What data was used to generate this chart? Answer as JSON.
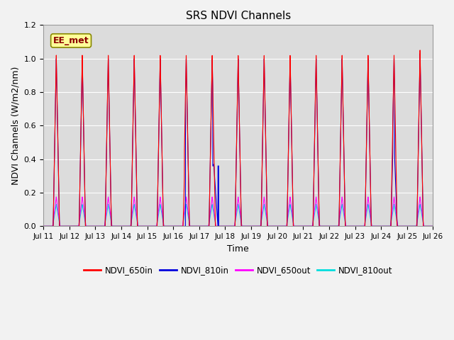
{
  "title": "SRS NDVI Channels",
  "xlabel": "Time",
  "ylabel": "NDVI Channels (W/m2/nm)",
  "ylim": [
    0.0,
    1.2
  ],
  "colors": {
    "NDVI_650in": "#ff0000",
    "NDVI_810in": "#0000dd",
    "NDVI_650out": "#ff00ff",
    "NDVI_810out": "#00dddd"
  },
  "bg_color": "#dcdcdc",
  "grid_color": "#ffffff",
  "annotation_text": "EE_met",
  "annotation_facecolor": "#ffff99",
  "annotation_edgecolor": "#888800",
  "xtick_labels": [
    "Jul 11",
    "Jul 12",
    "Jul 13",
    "Jul 14",
    "Jul 15",
    "Jul 16",
    "Jul 17",
    "Jul 18",
    "Jul 19",
    "Jul 20",
    "Jul 21",
    "Jul 22",
    "Jul 23",
    "Jul 24",
    "Jul 25",
    "Jul 26"
  ],
  "ytick_values": [
    0.0,
    0.2,
    0.4,
    0.6,
    0.8,
    1.0,
    1.2
  ],
  "figsize": [
    6.4,
    4.8
  ],
  "dpi": 100
}
